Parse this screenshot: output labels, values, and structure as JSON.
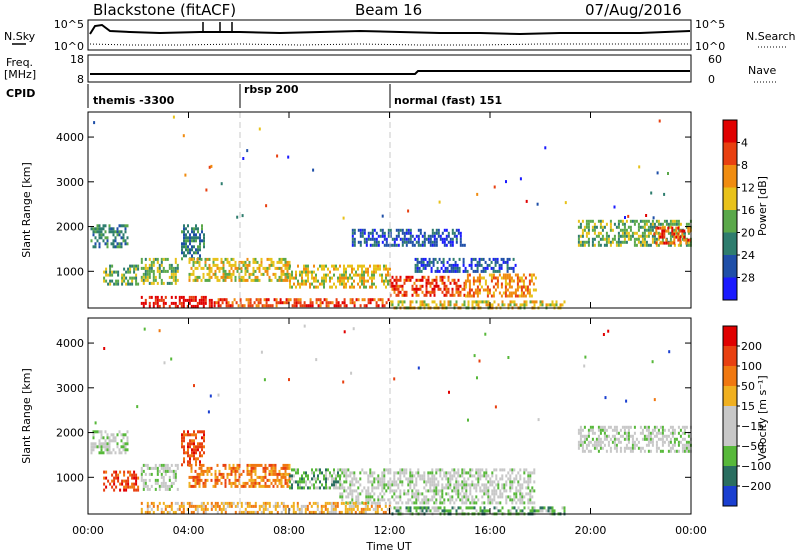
{
  "header": {
    "station": "Blackstone (fitACF)",
    "beam": "Beam 16",
    "date": "07/Aug/2016"
  },
  "noise_panel": {
    "left_label": "N.Sky",
    "right_label": "N.Search",
    "left_ticks": [
      "10^5",
      "10^0"
    ],
    "right_ticks": [
      "10^5",
      "10^0"
    ]
  },
  "freq_panel": {
    "left_label_1": "Freq.",
    "left_label_2": "[MHz]",
    "right_label": "Nave",
    "left_ticks": [
      "18",
      "8"
    ],
    "right_ticks": [
      "60",
      "0"
    ]
  },
  "cpid_panel": {
    "label": "CPID",
    "programs": [
      {
        "name": "themis -3300",
        "start_hour": 0
      },
      {
        "name": "rbsp 200",
        "start_hour": 6
      },
      {
        "name": "normal (fast) 151",
        "start_hour": 12
      }
    ]
  },
  "chart_data": [
    {
      "type": "heatmap",
      "title": "",
      "xlabel": "",
      "ylabel": "Slant Range [km]",
      "xlim": [
        0,
        24
      ],
      "ylim": [
        180,
        4560
      ],
      "y_ticks": [
        1000,
        2000,
        3000,
        4000
      ],
      "colorbar": {
        "label": "Power [dB]",
        "ticks": [
          "4",
          "8",
          "12",
          "16",
          "20",
          "24",
          "28"
        ],
        "colors": [
          "#1a1aff",
          "#1f4fa8",
          "#2e7d6e",
          "#5aa84a",
          "#e8c21a",
          "#f08c10",
          "#e84010",
          "#e00000"
        ]
      },
      "scatter_regions": [
        {
          "t0": 0.1,
          "t1": 1.6,
          "r0": 1550,
          "r1": 2050,
          "level": 2
        },
        {
          "t0": 0.6,
          "t1": 2.0,
          "r0": 700,
          "r1": 1150,
          "level": 3
        },
        {
          "t0": 2.1,
          "t1": 3.6,
          "r0": 700,
          "r1": 1300,
          "level": 3
        },
        {
          "t0": 3.7,
          "t1": 4.6,
          "r0": 1250,
          "r1": 2050,
          "level": 2
        },
        {
          "t0": 4.0,
          "t1": 8.0,
          "r0": 800,
          "r1": 1300,
          "level": 4
        },
        {
          "t0": 8.0,
          "t1": 12.0,
          "r0": 650,
          "r1": 1150,
          "level": 4
        },
        {
          "t0": 12.0,
          "t1": 15.0,
          "r0": 450,
          "r1": 900,
          "level": 6
        },
        {
          "t0": 15.0,
          "t1": 17.8,
          "r0": 450,
          "r1": 950,
          "level": 5
        },
        {
          "t0": 13.0,
          "t1": 17.0,
          "r0": 1000,
          "r1": 1300,
          "level": 1
        },
        {
          "t0": 10.5,
          "t1": 15.0,
          "r0": 1550,
          "r1": 1950,
          "level": 1
        },
        {
          "t0": 2.1,
          "t1": 5.0,
          "r0": 200,
          "r1": 450,
          "level": 7
        },
        {
          "t0": 5.0,
          "t1": 12.0,
          "r0": 200,
          "r1": 400,
          "level": 6
        },
        {
          "t0": 12.0,
          "t1": 19.0,
          "r0": 200,
          "r1": 350,
          "level": 4
        },
        {
          "t0": 19.5,
          "t1": 24.0,
          "r0": 1550,
          "r1": 2150,
          "level": 3
        },
        {
          "t0": 22.5,
          "t1": 24.0,
          "r0": 1600,
          "r1": 2000,
          "level": 6
        }
      ]
    },
    {
      "type": "heatmap",
      "title": "",
      "xlabel": "Time UT",
      "ylabel": "Slant Range [km]",
      "xlim": [
        0,
        24
      ],
      "ylim": [
        180,
        4560
      ],
      "x_ticks": [
        "00:00",
        "04:00",
        "08:00",
        "12:00",
        "16:00",
        "20:00",
        "00:00"
      ],
      "y_ticks": [
        1000,
        2000,
        3000,
        4000
      ],
      "colorbar": {
        "label": "Velocity [m s⁻¹]",
        "ticks": [
          "200",
          "100",
          "50",
          "15",
          "−15",
          "−50",
          "−100",
          "−200"
        ],
        "colors": [
          "#1a3fd0",
          "#2a6e60",
          "#57b83a",
          "#c8c8c8",
          "#c8c8c8",
          "#f0b020",
          "#f07810",
          "#e84010",
          "#e00000"
        ]
      },
      "scatter_regions": [
        {
          "t0": 0.1,
          "t1": 1.6,
          "r0": 1550,
          "r1": 2050,
          "level": 3
        },
        {
          "t0": 0.6,
          "t1": 2.0,
          "r0": 700,
          "r1": 1150,
          "level": 7
        },
        {
          "t0": 2.1,
          "t1": 3.6,
          "r0": 700,
          "r1": 1300,
          "level": 3
        },
        {
          "t0": 3.7,
          "t1": 4.6,
          "r0": 1250,
          "r1": 2050,
          "level": 7
        },
        {
          "t0": 4.0,
          "t1": 8.0,
          "r0": 800,
          "r1": 1300,
          "level": 6
        },
        {
          "t0": 8.0,
          "t1": 10.0,
          "r0": 750,
          "r1": 1200,
          "level": 2
        },
        {
          "t0": 10.0,
          "t1": 17.8,
          "r0": 450,
          "r1": 1200,
          "level": 3
        },
        {
          "t0": 2.1,
          "t1": 12.0,
          "r0": 200,
          "r1": 450,
          "level": 5
        },
        {
          "t0": 12.0,
          "t1": 19.0,
          "r0": 200,
          "r1": 350,
          "level": 2
        },
        {
          "t0": 19.5,
          "t1": 24.0,
          "r0": 1550,
          "r1": 2150,
          "level": 3
        }
      ]
    }
  ]
}
